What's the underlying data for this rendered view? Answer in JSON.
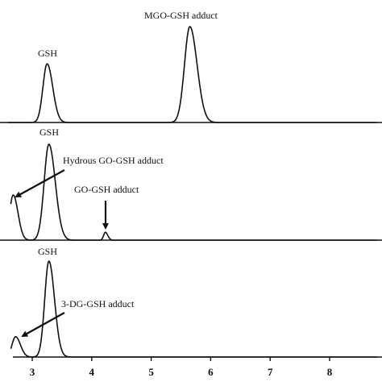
{
  "chart_data": {
    "type": "line",
    "xlim": [
      2.6,
      8.8
    ],
    "x_ticks": [
      3,
      4,
      5,
      6,
      7,
      8
    ],
    "x_tick_labels": [
      "3",
      "4",
      "5",
      "6",
      "7",
      "8"
    ],
    "panels": [
      {
        "peaks": [
          {
            "label": "GSH",
            "x": 3.25,
            "height": 0.52,
            "width": 0.07
          },
          {
            "label": "MGO-GSH adduct",
            "x": 5.65,
            "height": 0.85,
            "width": 0.09
          }
        ],
        "annotations": [
          {
            "text": "GSH",
            "x": 3.25
          },
          {
            "text": "MGO-GSH adduct",
            "x": 5.65
          }
        ]
      },
      {
        "peaks": [
          {
            "label": "Hydrous GO-GSH adduct",
            "x": 2.68,
            "height": 0.4,
            "width": 0.06
          },
          {
            "label": "GSH",
            "x": 3.28,
            "height": 0.85,
            "width": 0.08
          },
          {
            "label": "GO-GSH adduct",
            "x": 4.23,
            "height": 0.07,
            "width": 0.03
          }
        ],
        "annotations": [
          {
            "text": "GSH",
            "x": 3.28
          },
          {
            "text": "Hydrous GO-GSH adduct",
            "x": 2.68,
            "arrow": true
          },
          {
            "text": "GO-GSH adduct",
            "x": 4.23,
            "arrow": true
          }
        ]
      },
      {
        "peaks": [
          {
            "label": "3-DG-GSH adduct",
            "x": 2.72,
            "height": 0.18,
            "width": 0.06
          },
          {
            "label": "GSH",
            "x": 3.28,
            "height": 0.85,
            "width": 0.07
          }
        ],
        "annotations": [
          {
            "text": "GSH",
            "x": 3.28
          },
          {
            "text": "3-DG-GSH adduct",
            "x": 2.72,
            "arrow": true
          }
        ]
      }
    ]
  }
}
